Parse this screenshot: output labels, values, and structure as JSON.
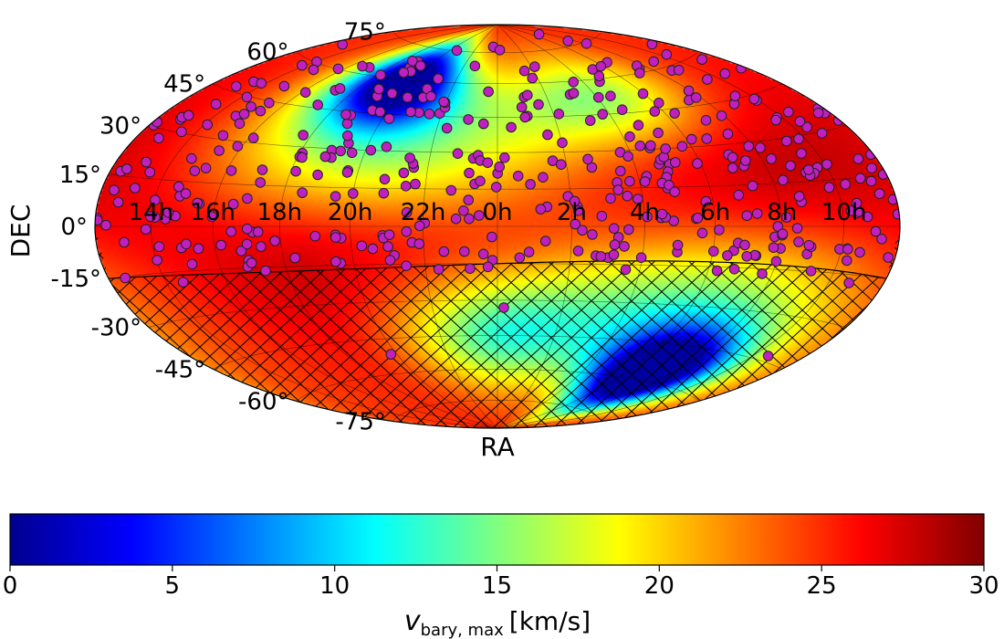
{
  "chart_data": {
    "type": "heatmap",
    "projection": "hammer-aitoff",
    "title": "",
    "xlabel": "RA",
    "ylabel": "DEC",
    "ra_tick_labels": [
      "14h",
      "16h",
      "18h",
      "20h",
      "22h",
      "0h",
      "2h",
      "4h",
      "6h",
      "8h",
      "10h"
    ],
    "dec_tick_labels": [
      "75°",
      "60°",
      "45°",
      "30°",
      "15°",
      "0°",
      "-15°",
      "-30°",
      "-45°",
      "-60°",
      "-75°"
    ],
    "colorbar": {
      "label": "v_bary, max [km/s]",
      "label_main": "v",
      "label_sub": "bary, max",
      "label_units": "[km/s]",
      "min": 0,
      "max": 30,
      "ticks": [
        "0",
        "5",
        "10",
        "15",
        "20",
        "25",
        "30"
      ],
      "colormap": "jet"
    },
    "field_extremes": [
      {
        "name": "northern minimum",
        "ra_h": 19.5,
        "dec_deg": 58,
        "value": 4
      },
      {
        "name": "southern minimum",
        "ra_h": 7.5,
        "dec_deg": -58,
        "value": 2
      },
      {
        "name": "equatorial maximum band",
        "dec_deg": 0,
        "value": 30
      }
    ],
    "hatched_region": {
      "description": "excluded southern sky",
      "dec_max_deg_range": [
        -17,
        -13
      ]
    },
    "markers": {
      "color": "#c020c0",
      "edge": "#222222",
      "count_approx": 420,
      "note": "target stars, densest north of Dec -15°"
    }
  }
}
